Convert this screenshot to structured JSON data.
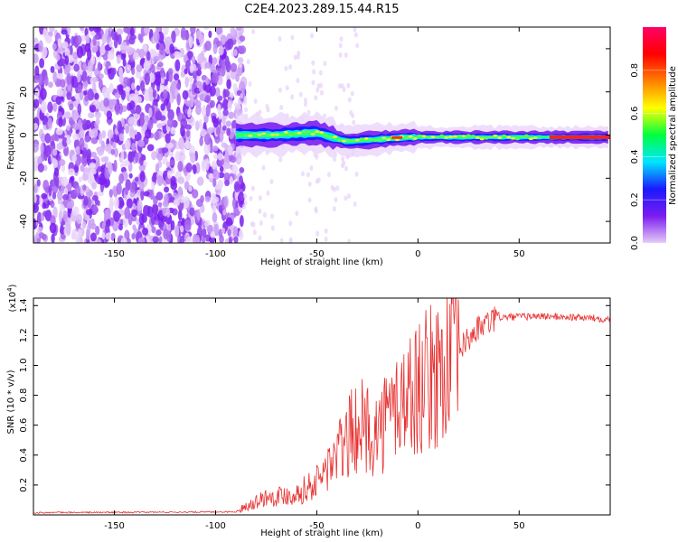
{
  "title": "C2E4.2023.289.15.44.R15",
  "chart_data": [
    {
      "type": "heatmap",
      "xlabel": "Height of straight line (km)",
      "ylabel": "Frequency (Hz)",
      "xlim": [
        -190,
        95
      ],
      "ylim": [
        -50,
        50
      ],
      "x_ticks": [
        -150,
        -100,
        -50,
        0,
        50
      ],
      "y_ticks": [
        -40,
        -20,
        0,
        20,
        40
      ],
      "colorbar": {
        "label": "Normalized spectral amplitude",
        "range": [
          0,
          1
        ],
        "ticks": [
          0.0,
          0.2,
          0.4,
          0.6,
          0.8
        ],
        "colors": [
          "#e6ccf7",
          "#7b1cf0",
          "#1a1aff",
          "#00e5ff",
          "#00ff40",
          "#ffff00",
          "#ff8000",
          "#ff0000",
          "#ff0066"
        ]
      },
      "regions": [
        {
          "x_range": [
            -190,
            -90
          ],
          "description_level": 0.1
        },
        {
          "x_range": [
            -90,
            95
          ],
          "center_freq_hz": [
            {
              "x": -90,
              "f": 0
            },
            {
              "x": -70,
              "f": 0
            },
            {
              "x": -50,
              "f": 1
            },
            {
              "x": -35,
              "f": -3
            },
            {
              "x": -20,
              "f": -2
            },
            {
              "x": -5,
              "f": -1
            },
            {
              "x": 10,
              "f": -1
            },
            {
              "x": 40,
              "f": -1
            },
            {
              "x": 95,
              "f": -1
            }
          ]
        }
      ]
    },
    {
      "type": "line",
      "xlabel": "Height of straight line (km)",
      "ylabel": "SNR (10 * v/v)",
      "y_multiplier": "(x10^4)",
      "xlim": [
        -190,
        95
      ],
      "ylim": [
        0,
        1.45
      ],
      "x_ticks": [
        -150,
        -100,
        -50,
        0,
        50
      ],
      "y_ticks": [
        0.2,
        0.4,
        0.6,
        0.8,
        1.0,
        1.2,
        1.4
      ],
      "color": "#e83030",
      "envelope": [
        {
          "x": -190,
          "y": 0.015
        },
        {
          "x": -90,
          "y": 0.02
        },
        {
          "x": -85,
          "y": 0.06
        },
        {
          "x": -75,
          "y": 0.12
        },
        {
          "x": -60,
          "y": 0.14
        },
        {
          "x": -50,
          "y": 0.22
        },
        {
          "x": -40,
          "y": 0.4
        },
        {
          "x": -30,
          "y": 0.6
        },
        {
          "x": -20,
          "y": 0.55
        },
        {
          "x": -10,
          "y": 0.75
        },
        {
          "x": 0,
          "y": 0.85
        },
        {
          "x": 10,
          "y": 0.95
        },
        {
          "x": 20,
          "y": 1.1
        },
        {
          "x": 30,
          "y": 1.25
        },
        {
          "x": 40,
          "y": 1.32
        },
        {
          "x": 60,
          "y": 1.33
        },
        {
          "x": 80,
          "y": 1.32
        },
        {
          "x": 95,
          "y": 1.31
        }
      ]
    }
  ]
}
